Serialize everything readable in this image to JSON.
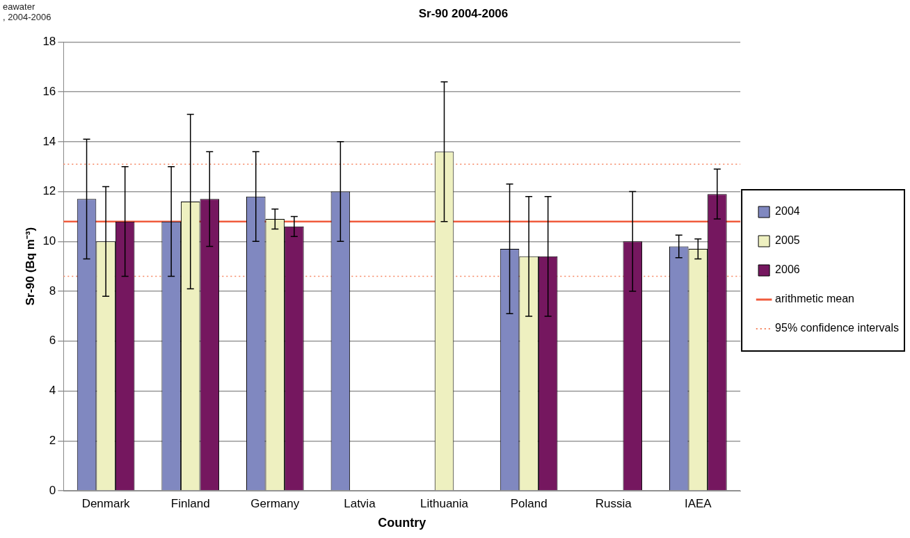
{
  "chart_data": {
    "type": "bar",
    "title": "Sr-90 2004-2006",
    "xlabel": "Country",
    "ylabel": "Sr-90 (Bq m⁻³)",
    "annotations": [
      "eawater",
      ", 2004-2006"
    ],
    "categories": [
      "Denmark",
      "Finland",
      "Germany",
      "Latvia",
      "Lithuania",
      "Poland",
      "Russia",
      "IAEA"
    ],
    "series": [
      {
        "name": "2004",
        "color": "#8088c0",
        "values": [
          11.7,
          10.8,
          11.8,
          12.0,
          null,
          9.7,
          null,
          9.8
        ],
        "errors": [
          [
            9.3,
            14.1
          ],
          [
            8.6,
            13.0
          ],
          [
            10.0,
            13.6
          ],
          [
            10.0,
            14.0
          ],
          null,
          [
            7.1,
            12.3
          ],
          null,
          [
            9.35,
            10.25
          ]
        ]
      },
      {
        "name": "2005",
        "color": "#eef0c0",
        "values": [
          10.0,
          11.6,
          10.9,
          null,
          13.6,
          9.4,
          null,
          9.7
        ],
        "errors": [
          [
            7.8,
            12.2
          ],
          [
            8.1,
            15.1
          ],
          [
            10.5,
            11.3
          ],
          null,
          [
            10.8,
            16.4
          ],
          [
            7.0,
            11.8
          ],
          null,
          [
            9.3,
            10.1
          ]
        ]
      },
      {
        "name": "2006",
        "color": "#75175f",
        "values": [
          10.8,
          11.7,
          10.6,
          null,
          null,
          9.4,
          10.0,
          11.9
        ],
        "errors": [
          [
            8.6,
            13.0
          ],
          [
            9.8,
            13.6
          ],
          [
            10.2,
            11.0
          ],
          null,
          null,
          [
            7.0,
            11.8
          ],
          [
            8.0,
            12.0
          ],
          [
            10.9,
            12.9
          ]
        ]
      }
    ],
    "ref_lines": [
      {
        "axis": "y",
        "value": 10.8,
        "label": "arithmetic mean",
        "color": "#f05a3c",
        "line_style": "solid"
      },
      {
        "axis": "y",
        "value": 13.1,
        "label": "95% confidence intervals",
        "color": "#f5845f",
        "line_style": "dotted"
      },
      {
        "axis": "y",
        "value": 8.6,
        "label": null,
        "color": "#f5845f",
        "line_style": "dotted"
      }
    ],
    "ylim": [
      0,
      18
    ],
    "yticks": [
      0,
      2,
      4,
      6,
      8,
      10,
      12,
      14,
      16,
      18
    ],
    "grid": "y",
    "legend": "right"
  }
}
